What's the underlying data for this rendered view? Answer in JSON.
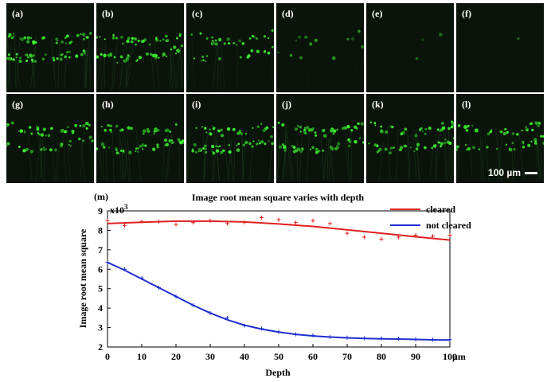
{
  "figure": {
    "panel_labels": [
      "(a)",
      "(b)",
      "(c)",
      "(d)",
      "(e)",
      "(f)",
      "(g)",
      "(h)",
      "(i)",
      "(j)",
      "(k)",
      "(l)"
    ],
    "panel_brightness": [
      1.0,
      0.95,
      0.55,
      0.2,
      0.04,
      0.02,
      0.8,
      0.85,
      1.0,
      1.0,
      0.9,
      0.85
    ],
    "scale_bar_label": "100 µm",
    "chart_label": "(m)"
  },
  "chart_data": {
    "type": "line",
    "title": "Image root mean square varies with depth",
    "xlabel": "Depth",
    "ylabel": "Image root mean square",
    "y_multiplier": "x10",
    "y_exponent": "3",
    "x_unit": "µm",
    "xlim": [
      0,
      100
    ],
    "ylim": [
      2,
      9
    ],
    "x_ticks": [
      "0",
      "10",
      "20",
      "30",
      "40",
      "50",
      "60",
      "70",
      "80",
      "90",
      "100"
    ],
    "y_ticks": [
      "2",
      "3",
      "4",
      "5",
      "6",
      "7",
      "8",
      "9"
    ],
    "legend_position": "top-right",
    "series": [
      {
        "name": "cleared",
        "color": "#e02020",
        "fit_x": [
          0,
          10,
          20,
          30,
          40,
          50,
          60,
          70,
          80,
          90,
          100
        ],
        "fit_y": [
          8.35,
          8.42,
          8.47,
          8.47,
          8.43,
          8.33,
          8.2,
          8.03,
          7.85,
          7.67,
          7.5
        ],
        "points_x": [
          0,
          5,
          10,
          15,
          20,
          25,
          30,
          35,
          40,
          45,
          50,
          55,
          60,
          65,
          70,
          75,
          80,
          85,
          90,
          95,
          100
        ],
        "points_y": [
          8.5,
          8.25,
          8.45,
          8.45,
          8.3,
          8.4,
          8.5,
          8.35,
          8.4,
          8.65,
          8.55,
          8.4,
          8.5,
          8.35,
          7.85,
          7.65,
          7.55,
          7.65,
          7.75,
          7.7,
          7.75
        ]
      },
      {
        "name": "not cleared",
        "color": "#1f2fd0",
        "fit_x": [
          0,
          5,
          10,
          15,
          20,
          25,
          30,
          35,
          40,
          45,
          50,
          55,
          60,
          65,
          70,
          75,
          80,
          85,
          90,
          95,
          100
        ],
        "fit_y": [
          6.35,
          5.95,
          5.5,
          5.05,
          4.6,
          4.15,
          3.75,
          3.4,
          3.12,
          2.92,
          2.77,
          2.65,
          2.57,
          2.51,
          2.47,
          2.44,
          2.42,
          2.41,
          2.39,
          2.37,
          2.36
        ],
        "points_x": [
          0,
          5,
          10,
          15,
          20,
          25,
          30,
          35,
          40,
          45,
          50,
          55,
          60,
          65,
          70,
          75,
          80,
          85,
          90,
          95,
          100
        ],
        "points_y": [
          6.35,
          6.0,
          5.55,
          5.05,
          4.6,
          4.15,
          3.75,
          3.5,
          3.1,
          2.95,
          2.78,
          2.65,
          2.6,
          2.52,
          2.48,
          2.45,
          2.44,
          2.43,
          2.4,
          2.38,
          2.38
        ]
      }
    ]
  }
}
